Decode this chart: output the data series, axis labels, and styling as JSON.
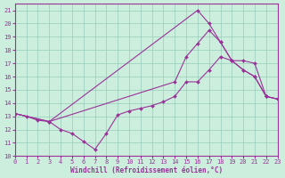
{
  "xlabel": "Windchill (Refroidissement éolien,°C)",
  "bg_color": "#cceedd",
  "line_color": "#993399",
  "grid_color": "#99ccbb",
  "xlim": [
    0,
    23
  ],
  "ylim": [
    10,
    21.5
  ],
  "yticks": [
    10,
    11,
    12,
    13,
    14,
    15,
    16,
    17,
    18,
    19,
    20,
    21
  ],
  "xticks": [
    0,
    1,
    2,
    3,
    4,
    5,
    6,
    7,
    8,
    9,
    10,
    11,
    12,
    13,
    14,
    15,
    16,
    17,
    18,
    19,
    20,
    21,
    22,
    23
  ],
  "line1_x": [
    0,
    1,
    2,
    3,
    4,
    5,
    6,
    7,
    8,
    9,
    10,
    11,
    12,
    13,
    14,
    15,
    16,
    17,
    18,
    19,
    20,
    21,
    22,
    23
  ],
  "line1_y": [
    13.2,
    13.0,
    12.7,
    12.6,
    12.0,
    11.7,
    11.1,
    10.5,
    11.7,
    13.1,
    13.4,
    13.6,
    13.8,
    14.1,
    14.5,
    15.6,
    15.6,
    16.5,
    17.5,
    17.2,
    17.2,
    17.0,
    14.5,
    14.3
  ],
  "line2_x": [
    0,
    3,
    16,
    17,
    18,
    19,
    20,
    21,
    22,
    23
  ],
  "line2_y": [
    13.2,
    12.6,
    21.0,
    20.0,
    18.6,
    17.2,
    16.5,
    16.0,
    14.5,
    14.3
  ],
  "line3_x": [
    0,
    3,
    14,
    15,
    16,
    17,
    18,
    19,
    20,
    21,
    22,
    23
  ],
  "line3_y": [
    13.2,
    12.6,
    15.6,
    17.5,
    18.5,
    19.5,
    18.6,
    17.2,
    16.5,
    16.0,
    14.5,
    14.3
  ]
}
